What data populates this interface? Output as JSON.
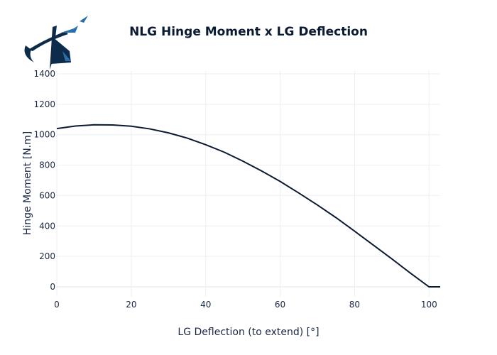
{
  "colors": {
    "line": "#0b1a33",
    "logo_dark": "#0d2b4a",
    "logo_light": "#2a6fa8"
  },
  "chart_data": {
    "type": "line",
    "title": "NLG Hinge Moment x LG Deflection",
    "xlabel": "LG Deflection (to extend) [°]",
    "ylabel": "Hinge Moment [N.m]",
    "xlim": [
      0,
      103
    ],
    "ylim": [
      -80,
      1400
    ],
    "x_ticks": [
      0,
      20,
      40,
      60,
      80,
      100
    ],
    "y_ticks": [
      0,
      200,
      400,
      600,
      800,
      1000,
      1200,
      1400
    ],
    "grid": true,
    "legend": "none",
    "series": [
      {
        "x": [
          0,
          5,
          10,
          15,
          20,
          25,
          30,
          35,
          40,
          45,
          50,
          55,
          60,
          65,
          70,
          75,
          80,
          85,
          90,
          95,
          100,
          103
        ],
        "y": [
          1040,
          1057,
          1065,
          1064,
          1056,
          1038,
          1012,
          978,
          934,
          885,
          826,
          762,
          693,
          617,
          538,
          455,
          366,
          275,
          184,
          90,
          0,
          -70
        ]
      }
    ]
  }
}
